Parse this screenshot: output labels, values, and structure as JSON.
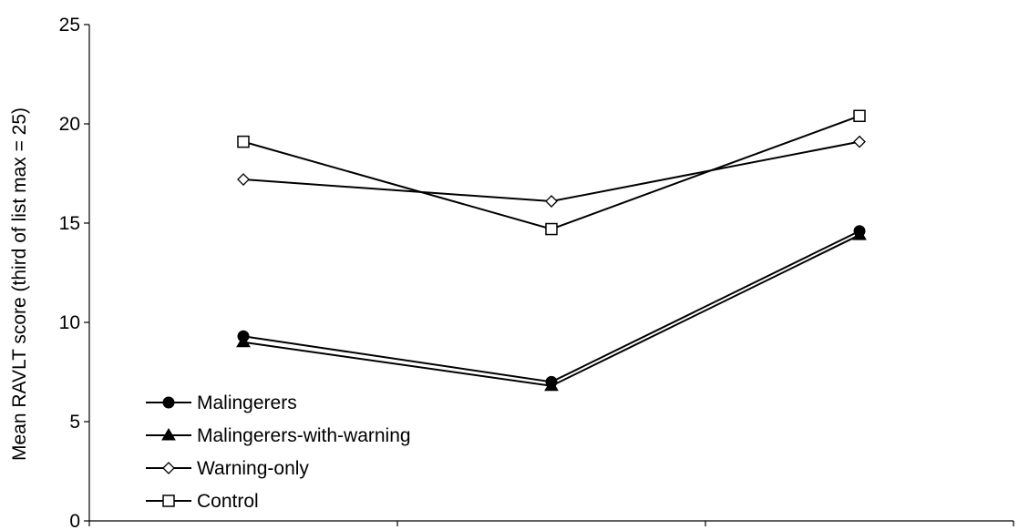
{
  "chart_data": {
    "type": "line",
    "title": "",
    "xlabel": "",
    "ylabel": "Mean RAVLT score (third of list max = 25)",
    "ylim": [
      0,
      25
    ],
    "yticks": [
      0,
      5,
      10,
      15,
      20,
      25
    ],
    "categories": [
      "",
      "",
      ""
    ],
    "grid": false,
    "legend_position": "bottom-left",
    "series": [
      {
        "name": "Malingerers",
        "marker": "filled-circle",
        "values": [
          9.3,
          7.0,
          14.6
        ]
      },
      {
        "name": "Malingerers-with-warning",
        "marker": "filled-triangle",
        "values": [
          9.0,
          6.8,
          14.4
        ]
      },
      {
        "name": "Warning-only",
        "marker": "open-diamond",
        "values": [
          17.2,
          16.1,
          19.1
        ]
      },
      {
        "name": "Control",
        "marker": "open-square",
        "values": [
          19.1,
          14.7,
          20.4
        ]
      }
    ],
    "colors": {
      "line": "#000000",
      "background": "#ffffff"
    }
  }
}
